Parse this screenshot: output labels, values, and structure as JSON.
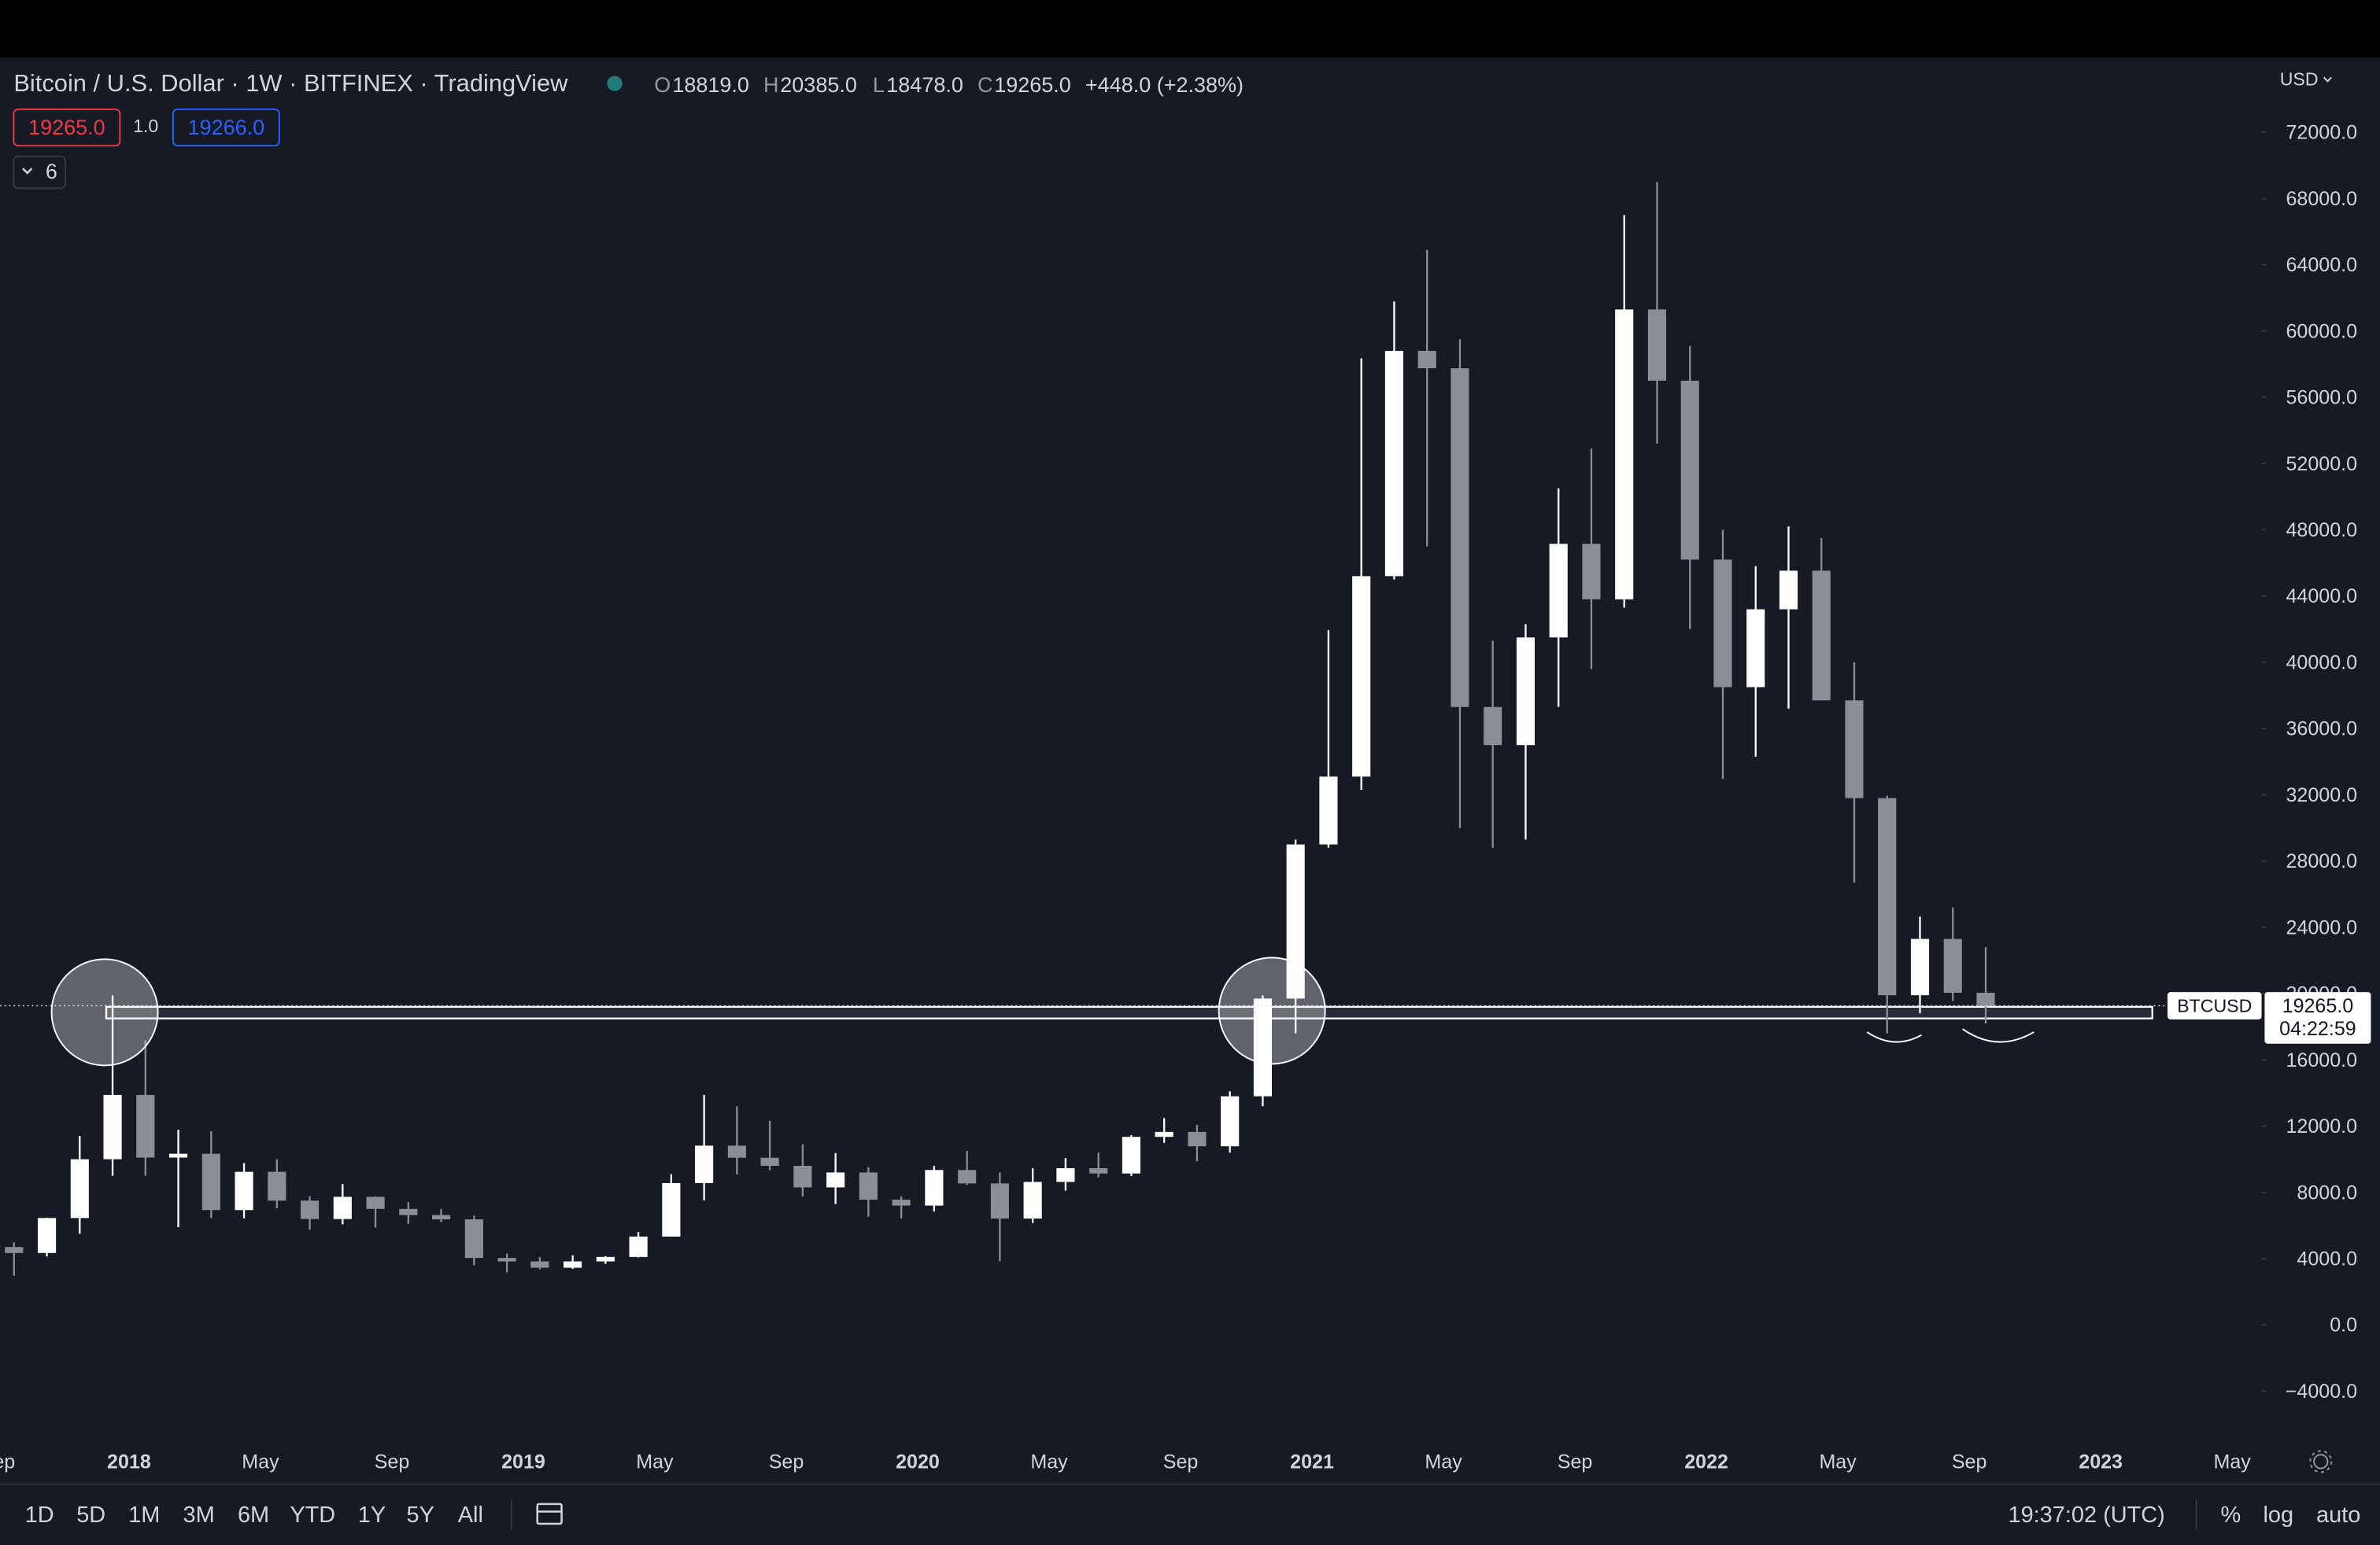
{
  "header": {
    "symbol": "Bitcoin / U.S. Dollar · 1W · BITFINEX · TradingView",
    "o_label": "O",
    "o": "18819.0",
    "h_label": "H",
    "h": "20385.0",
    "l_label": "L",
    "l": "18478.0",
    "c_label": "C",
    "c": "19265.0",
    "change": "+448.0 (+2.38%)",
    "sell": "19265.0",
    "spread": "1.0",
    "buy": "19266.0",
    "indicators": "6",
    "currency": "USD"
  },
  "chart_data": {
    "type": "candlestick",
    "title": "Bitcoin / U.S. Dollar",
    "x": [
      "2017-09",
      "2017-10",
      "2017-11",
      "2017-12",
      "2018-01",
      "2018-02",
      "2018-03",
      "2018-04",
      "2018-05",
      "2018-06",
      "2018-07",
      "2018-08",
      "2018-09",
      "2018-10",
      "2018-11",
      "2018-12",
      "2019-01",
      "2019-02",
      "2019-03",
      "2019-04",
      "2019-05",
      "2019-06",
      "2019-07",
      "2019-08",
      "2019-09",
      "2019-10",
      "2019-11",
      "2019-12",
      "2020-01",
      "2020-02",
      "2020-03",
      "2020-04",
      "2020-05",
      "2020-06",
      "2020-07",
      "2020-08",
      "2020-09",
      "2020-10",
      "2020-11",
      "2020-12",
      "2021-01",
      "2021-02",
      "2021-03",
      "2021-04",
      "2021-05",
      "2021-06",
      "2021-07",
      "2021-08",
      "2021-09",
      "2021-10",
      "2021-11",
      "2021-12",
      "2022-01",
      "2022-02",
      "2022-03",
      "2022-04",
      "2022-05",
      "2022-06",
      "2022-07",
      "2022-08",
      "2022-09"
    ],
    "open": [
      4700,
      4340,
      6450,
      10000,
      13880,
      10100,
      10330,
      6930,
      9240,
      7500,
      6390,
      7730,
      7000,
      6630,
      6370,
      4040,
      3830,
      3450,
      3830,
      4100,
      5330,
      8560,
      10820,
      10090,
      9600,
      8300,
      9200,
      7560,
      7200,
      9350,
      8540,
      6420,
      8630,
      9460,
      9140,
      11350,
      11650,
      10780,
      13800,
      19700,
      29000,
      33100,
      45200,
      58800,
      57750,
      37300,
      35000,
      41500,
      47150,
      43800,
      61300,
      57000,
      46200,
      38500,
      43200,
      45530,
      37700,
      31800,
      19900,
      23300,
      20050
    ],
    "high": [
      4980,
      6470,
      11400,
      19891,
      17170,
      11780,
      11700,
      9760,
      10000,
      7760,
      8500,
      7760,
      7420,
      7000,
      6600,
      4310,
      4090,
      4200,
      4150,
      5600,
      9100,
      13880,
      13200,
      12320,
      10900,
      10370,
      9520,
      7750,
      9600,
      10500,
      9200,
      9460,
      10070,
      10400,
      11450,
      12480,
      12080,
      14100,
      19890,
      29300,
      41950,
      58350,
      61780,
      64900,
      59500,
      41300,
      42300,
      50500,
      52900,
      67000,
      69000,
      59100,
      48000,
      45800,
      48200,
      47500,
      40000,
      31950,
      24650,
      25200,
      22800
    ],
    "low": [
      2970,
      4130,
      5500,
      9000,
      9000,
      5900,
      6450,
      6430,
      7040,
      5750,
      6070,
      5880,
      6100,
      6200,
      3600,
      3160,
      3360,
      3380,
      3680,
      4070,
      5330,
      7510,
      9080,
      9330,
      7750,
      7300,
      6520,
      6430,
      6850,
      8450,
      3850,
      6150,
      8100,
      8900,
      8980,
      10990,
      9880,
      10400,
      13200,
      17600,
      28800,
      32300,
      45000,
      47000,
      30000,
      28800,
      29300,
      37300,
      39600,
      43300,
      53200,
      42000,
      32950,
      34300,
      37200,
      37700,
      26700,
      17600,
      18800,
      19550,
      18200
    ],
    "close": [
      4340,
      6450,
      10000,
      13880,
      10100,
      10330,
      6930,
      9240,
      7500,
      6390,
      7730,
      7000,
      6630,
      6370,
      4040,
      3830,
      3450,
      3830,
      4100,
      5330,
      8560,
      10820,
      10090,
      9600,
      8300,
      9200,
      7560,
      7200,
      9350,
      8540,
      6420,
      8630,
      9460,
      9140,
      11350,
      11650,
      10780,
      13800,
      19700,
      29000,
      33100,
      45200,
      58800,
      57750,
      37300,
      35000,
      41500,
      47150,
      43800,
      61300,
      57000,
      46200,
      38500,
      43200,
      45530,
      37700,
      31800,
      19900,
      23300,
      20050,
      19265
    ],
    "up_color": "#ffffff",
    "down_color": "#8b8e96",
    "ylim": [
      -6600,
      76500
    ],
    "yticks": [
      {
        "value": -4000,
        "label": "−4000.0"
      },
      {
        "value": 0,
        "label": "0.0"
      },
      {
        "value": 4000,
        "label": "4000.0"
      },
      {
        "value": 8000,
        "label": "8000.0"
      },
      {
        "value": 12000,
        "label": "12000.0"
      },
      {
        "value": 16000,
        "label": "16000.0"
      },
      {
        "value": 20000,
        "label": "20000.0"
      },
      {
        "value": 24000,
        "label": "24000.0"
      },
      {
        "value": 28000,
        "label": "28000.0"
      },
      {
        "value": 32000,
        "label": "32000.0"
      },
      {
        "value": 36000,
        "label": "36000.0"
      },
      {
        "value": 40000,
        "label": "40000.0"
      },
      {
        "value": 44000,
        "label": "44000.0"
      },
      {
        "value": 48000,
        "label": "48000.0"
      },
      {
        "value": 52000,
        "label": "52000.0"
      },
      {
        "value": 56000,
        "label": "56000.0"
      },
      {
        "value": 60000,
        "label": "60000.0"
      },
      {
        "value": 64000,
        "label": "64000.0"
      },
      {
        "value": 68000,
        "label": "68000.0"
      },
      {
        "value": 72000,
        "label": "72000.0"
      }
    ],
    "xticks": [
      {
        "value": "2017-09",
        "label": "Sep"
      },
      {
        "value": "2018-01",
        "label": "2018"
      },
      {
        "value": "2018-05",
        "label": "May"
      },
      {
        "value": "2018-09",
        "label": "Sep"
      },
      {
        "value": "2019-01",
        "label": "2019"
      },
      {
        "value": "2019-05",
        "label": "May"
      },
      {
        "value": "2019-09",
        "label": "Sep"
      },
      {
        "value": "2020-01",
        "label": "2020"
      },
      {
        "value": "2020-05",
        "label": "May"
      },
      {
        "value": "2020-09",
        "label": "Sep"
      },
      {
        "value": "2021-01",
        "label": "2021"
      },
      {
        "value": "2021-05",
        "label": "May"
      },
      {
        "value": "2021-09",
        "label": "Sep"
      },
      {
        "value": "2022-01",
        "label": "2022"
      },
      {
        "value": "2022-05",
        "label": "May"
      },
      {
        "value": "2022-09",
        "label": "Sep"
      },
      {
        "value": "2023-01",
        "label": "2023"
      },
      {
        "value": "2023-05",
        "label": "May"
      }
    ],
    "grid": false,
    "last_price": {
      "value": 19265,
      "symbol": "BTCUSD",
      "label": "19265.0",
      "countdown": "04:22:59"
    },
    "support_zone": [
      18500,
      19200
    ]
  },
  "toolbar": {
    "ranges": [
      "1D",
      "5D",
      "1M",
      "3M",
      "6M",
      "YTD",
      "1Y",
      "5Y",
      "All"
    ],
    "time": "19:37:02 (UTC)",
    "percent": "%",
    "log": "log",
    "auto": "auto"
  }
}
